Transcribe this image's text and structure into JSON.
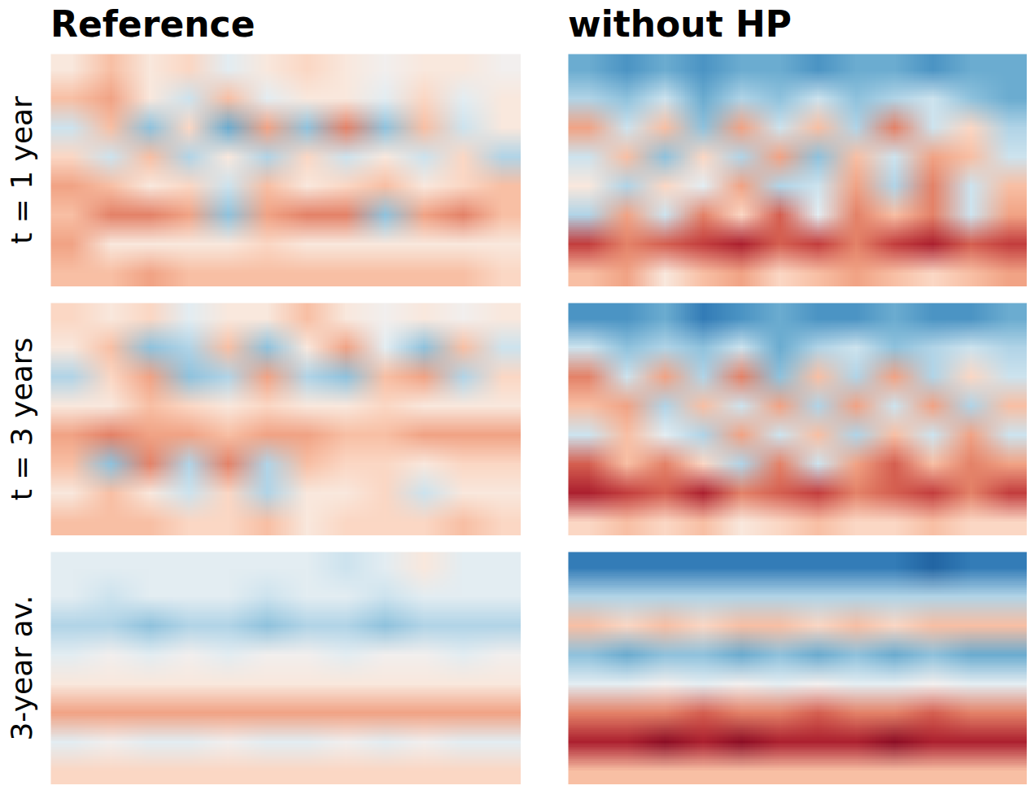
{
  "chart_data": {
    "type": "heatmap",
    "columns": [
      "Reference",
      "without HP"
    ],
    "rows": [
      "t = 1 year",
      "t = 3 years",
      "3-year av."
    ],
    "zlim": [
      -1,
      1
    ],
    "tick_labels": false,
    "cells": [
      [
        [
          [
            0.1,
            0.3,
            0.1,
            0.2,
            -0.1,
            0.1,
            0.2,
            0.1,
            0,
            0.1,
            0.1,
            0
          ],
          [
            0.3,
            0.4,
            0.1,
            -0.2,
            0.3,
            -0.1,
            0.1,
            0.1,
            -0.1,
            0.2,
            -0.1,
            0.1
          ],
          [
            -0.2,
            0.3,
            -0.4,
            0.2,
            -0.5,
            0.4,
            -0.4,
            0.5,
            -0.4,
            0.3,
            -0.2,
            0.1
          ],
          [
            0.2,
            -0.2,
            0.3,
            -0.3,
            0.1,
            -0.3,
            0.2,
            -0.2,
            0.1,
            -0.2,
            0.2,
            -0.3
          ],
          [
            0.4,
            0.3,
            0.1,
            0.2,
            -0.2,
            0.3,
            0.1,
            0.2,
            0.3,
            0.1,
            0.2,
            0.3
          ],
          [
            0.3,
            0.5,
            0.5,
            0.4,
            -0.4,
            0.4,
            0.5,
            0.5,
            -0.4,
            0.4,
            0.5,
            0.3
          ],
          [
            0.4,
            0.1,
            0.1,
            0.1,
            0.1,
            0.2,
            0.1,
            0.1,
            0.1,
            0.1,
            0.1,
            0.1
          ],
          [
            0.3,
            0.3,
            0.4,
            0.3,
            0.3,
            0.3,
            0.3,
            0.3,
            0.3,
            0.3,
            0.3,
            0.2
          ]
        ],
        [
          [
            -0.5,
            -0.6,
            -0.5,
            -0.6,
            -0.5,
            -0.5,
            -0.6,
            -0.5,
            -0.5,
            -0.6,
            -0.5,
            -0.5
          ],
          [
            -0.3,
            -0.4,
            -0.2,
            -0.5,
            -0.3,
            -0.4,
            -0.2,
            -0.4,
            -0.3,
            -0.2,
            -0.4,
            -0.5
          ],
          [
            0.4,
            -0.2,
            0.3,
            -0.4,
            0.4,
            -0.2,
            0.3,
            -0.3,
            0.5,
            -0.2,
            0.2,
            -0.3
          ],
          [
            -0.2,
            0.3,
            -0.4,
            0.2,
            -0.3,
            0.4,
            -0.4,
            0.3,
            -0.2,
            0.4,
            0.3,
            -0.2
          ],
          [
            0.1,
            -0.3,
            0.2,
            -0.1,
            0.4,
            -0.3,
            -0.2,
            0.4,
            -0.3,
            0.5,
            -0.2,
            0.3
          ],
          [
            -0.3,
            0.4,
            -0.2,
            0.5,
            0.2,
            0.6,
            -0.1,
            0.5,
            0.3,
            0.5,
            -0.2,
            0.4
          ],
          [
            0.7,
            0.5,
            0.6,
            0.7,
            0.8,
            0.6,
            0.7,
            0.5,
            0.7,
            0.8,
            0.6,
            0.7
          ],
          [
            0.3,
            0.4,
            0.1,
            0.3,
            0.4,
            0.2,
            0.3,
            0.4,
            0.3,
            0.2,
            0.3,
            0.4
          ]
        ]
      ],
      [
        [
          [
            0.2,
            0.1,
            0.2,
            -0.1,
            0.1,
            0.1,
            0.3,
            0.1,
            0,
            0.1,
            0,
            0.1
          ],
          [
            0.1,
            0.3,
            -0.4,
            -0.3,
            0.3,
            -0.4,
            0.1,
            0.4,
            -0.1,
            -0.4,
            0.3,
            -0.2
          ],
          [
            -0.3,
            0.2,
            0.4,
            -0.4,
            -0.3,
            0.4,
            -0.3,
            -0.4,
            0.3,
            0.4,
            -0.3,
            0.2
          ],
          [
            0.1,
            0.1,
            0.3,
            0.2,
            0.1,
            0.2,
            0.1,
            0.1,
            0.2,
            0.1,
            0.1,
            0.1
          ],
          [
            0.4,
            0.5,
            0.4,
            0.4,
            0.3,
            0.4,
            0.4,
            0.3,
            0.3,
            0.4,
            0.4,
            0.4
          ],
          [
            0.3,
            -0.4,
            0.5,
            -0.3,
            0.5,
            -0.3,
            0.3,
            0.2,
            0.2,
            0.1,
            0.2,
            0.2
          ],
          [
            0.1,
            0.3,
            0.1,
            -0.2,
            0.2,
            -0.3,
            0.1,
            0.1,
            0.2,
            -0.2,
            0.1,
            0.1
          ],
          [
            0.3,
            0.3,
            0.3,
            0.2,
            0.2,
            0.3,
            0.1,
            0.2,
            0.2,
            0.2,
            0.3,
            0.2
          ]
        ],
        [
          [
            -0.6,
            -0.6,
            -0.5,
            -0.7,
            -0.6,
            -0.5,
            -0.6,
            -0.6,
            -0.5,
            -0.6,
            -0.6,
            -0.5
          ],
          [
            -0.2,
            -0.4,
            -0.3,
            -0.4,
            -0.2,
            -0.5,
            -0.3,
            -0.2,
            -0.4,
            -0.3,
            -0.2,
            -0.3
          ],
          [
            0.5,
            -0.2,
            0.4,
            -0.3,
            0.5,
            -0.4,
            0.3,
            -0.3,
            0.4,
            -0.3,
            0.2,
            -0.2
          ],
          [
            0.3,
            0.4,
            -0.3,
            0.3,
            -0.2,
            0.4,
            -0.3,
            0.4,
            -0.2,
            0.4,
            -0.3,
            0.3
          ],
          [
            -0.2,
            0.3,
            -0.1,
            -0.3,
            0.4,
            -0.2,
            0.3,
            -0.3,
            0.3,
            -0.2,
            0.4,
            -0.2
          ],
          [
            0.6,
            0.3,
            0.5,
            0.2,
            -0.3,
            0.5,
            -0.2,
            0.4,
            0.6,
            0.3,
            0.5,
            0.4
          ],
          [
            0.8,
            0.7,
            0.6,
            0.8,
            0.5,
            0.6,
            0.7,
            0.5,
            0.6,
            0.7,
            0.5,
            0.7
          ],
          [
            0.2,
            0.3,
            0.2,
            0.3,
            0.1,
            0.2,
            0.3,
            0.2,
            0.2,
            0.3,
            0.2,
            0.2
          ]
        ]
      ],
      [
        [
          [
            -0.1,
            -0.1,
            -0.1,
            -0.1,
            -0.1,
            -0.1,
            -0.1,
            -0.2,
            -0.1,
            0.1,
            -0.1,
            -0.1
          ],
          [
            -0.1,
            -0.2,
            -0.1,
            -0.1,
            -0.1,
            -0.2,
            -0.1,
            -0.1,
            -0.2,
            -0.1,
            -0.1,
            -0.1
          ],
          [
            -0.3,
            -0.3,
            -0.4,
            -0.3,
            -0.3,
            -0.4,
            -0.3,
            -0.3,
            -0.4,
            -0.3,
            -0.3,
            -0.3
          ],
          [
            -0.1,
            0,
            -0.1,
            0,
            -0.1,
            0,
            0,
            -0.1,
            0,
            0,
            -0.1,
            0
          ],
          [
            0.1,
            0.1,
            0.1,
            0.1,
            0.1,
            0.1,
            0.1,
            0.1,
            0.1,
            0.1,
            0.1,
            0.1
          ],
          [
            0.4,
            0.4,
            0.4,
            0.4,
            0.4,
            0.4,
            0.4,
            0.4,
            0.4,
            0.4,
            0.4,
            0.4
          ],
          [
            -0.1,
            0,
            -0.1,
            -0.1,
            0,
            -0.1,
            -0.1,
            0,
            -0.1,
            0,
            -0.1,
            -0.1
          ],
          [
            0.2,
            0.2,
            0.2,
            0.2,
            0.2,
            0.2,
            0.2,
            0.2,
            0.2,
            0.2,
            0.2,
            0.2
          ]
        ],
        [
          [
            -0.7,
            -0.7,
            -0.7,
            -0.7,
            -0.7,
            -0.7,
            -0.7,
            -0.7,
            -0.7,
            -0.8,
            -0.7,
            -0.7
          ],
          [
            -0.3,
            -0.3,
            -0.3,
            -0.3,
            -0.3,
            -0.3,
            -0.3,
            -0.3,
            -0.3,
            -0.3,
            -0.3,
            -0.3
          ],
          [
            0.3,
            0.2,
            0.3,
            0.2,
            0.3,
            0.3,
            0.2,
            0.3,
            0.2,
            0.3,
            0.3,
            0.3
          ],
          [
            -0.4,
            -0.5,
            -0.4,
            -0.4,
            -0.5,
            -0.4,
            -0.5,
            -0.4,
            -0.5,
            -0.4,
            -0.5,
            -0.5
          ],
          [
            -0.1,
            -0.1,
            0,
            -0.1,
            0,
            -0.1,
            0,
            -0.1,
            -0.1,
            0,
            -0.1,
            -0.1
          ],
          [
            0.5,
            0.5,
            0.5,
            0.6,
            0.5,
            0.5,
            0.6,
            0.5,
            0.5,
            0.6,
            0.5,
            0.5
          ],
          [
            0.8,
            0.8,
            0.9,
            0.8,
            0.9,
            0.8,
            0.8,
            0.8,
            0.9,
            0.8,
            0.8,
            0.8
          ],
          [
            0.3,
            0.3,
            0.3,
            0.3,
            0.3,
            0.3,
            0.3,
            0.3,
            0.3,
            0.3,
            0.3,
            0.3
          ]
        ]
      ]
    ]
  }
}
